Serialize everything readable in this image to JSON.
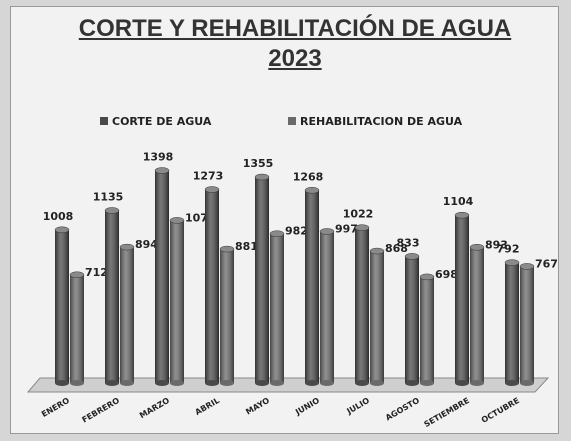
{
  "chart_data": {
    "type": "bar",
    "title": "CORTE Y REHABILITACIÓN DE AGUA 2023",
    "categories": [
      "ENERO",
      "FEBRERO",
      "MARZO",
      "ABRIL",
      "MAYO",
      "JUNIO",
      "JULIO",
      "AGOSTO",
      "SETIEMBRE",
      "OCTUBRE"
    ],
    "series": [
      {
        "name": "CORTE DE AGUA",
        "color": "#4a4a4a",
        "values": [
          1008,
          1135,
          1398,
          1273,
          1355,
          1268,
          1022,
          833,
          1104,
          792
        ]
      },
      {
        "name": "REHABILITACION DE AGUA",
        "color": "#6a6a6a",
        "values": [
          712,
          894,
          1070,
          881,
          982,
          997,
          868,
          698,
          893,
          767
        ]
      }
    ],
    "legend": "top"
  }
}
